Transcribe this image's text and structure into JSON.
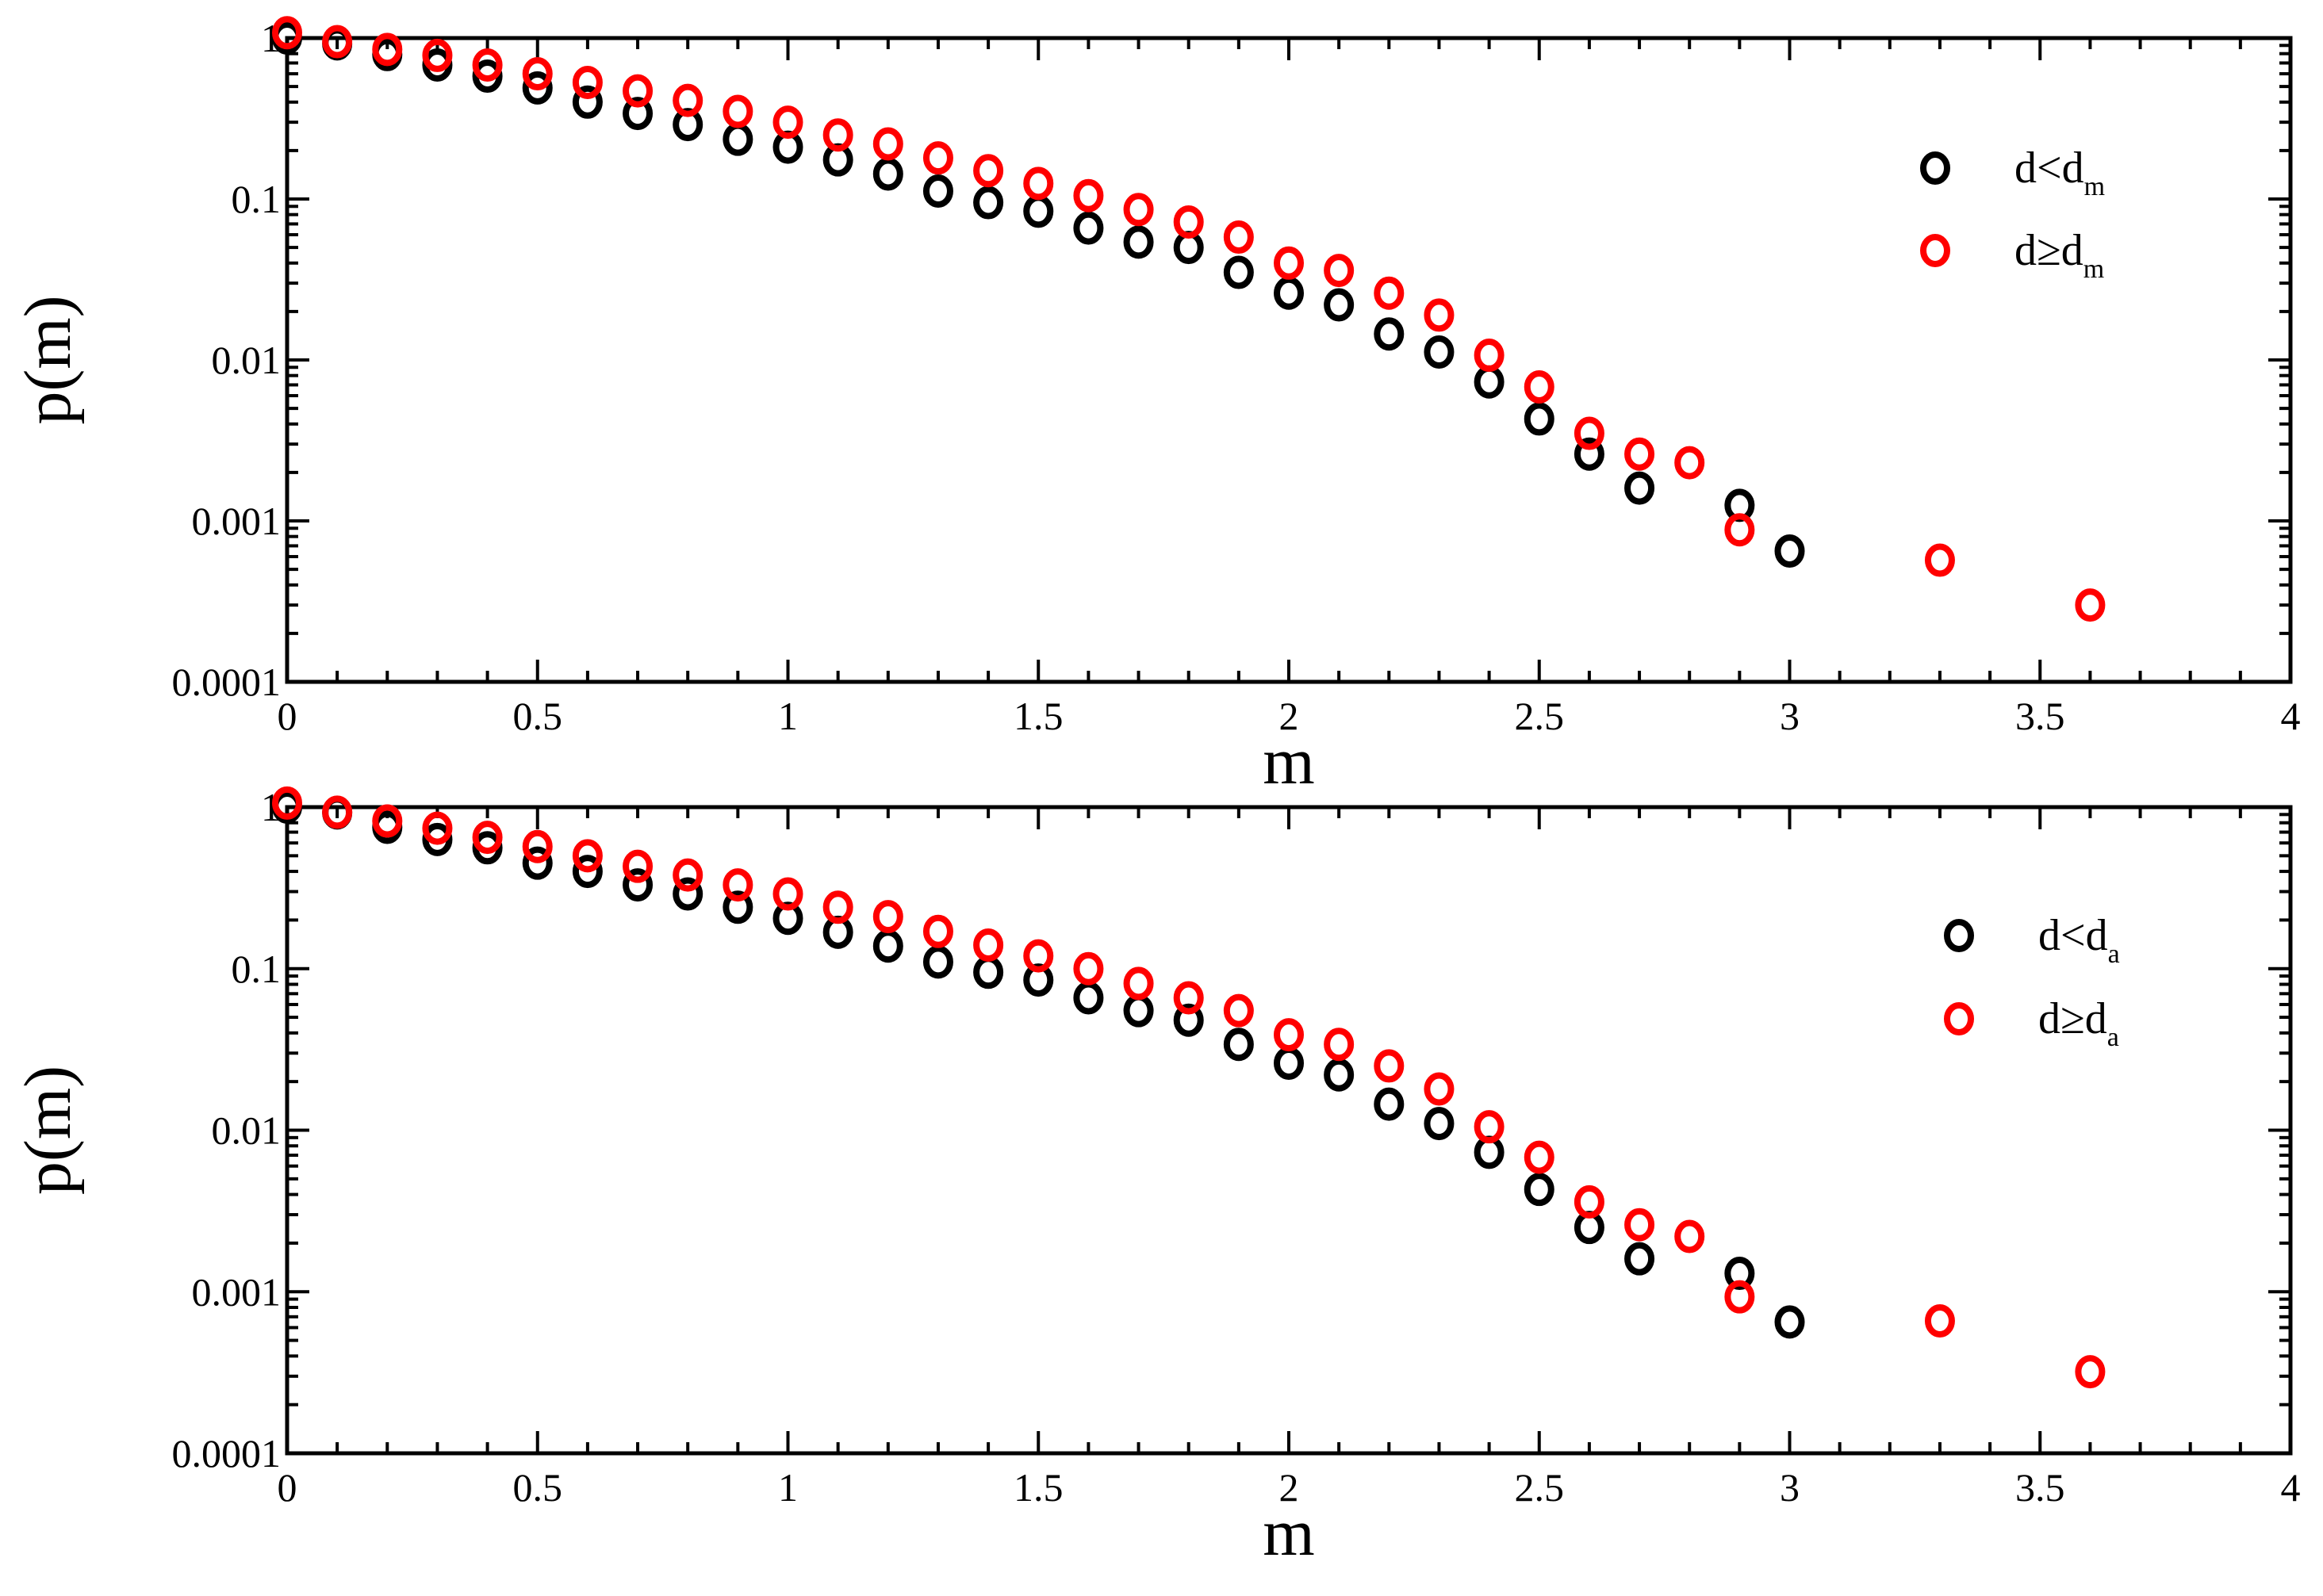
{
  "chart_data": [
    {
      "type": "scatter",
      "xlabel": "m",
      "ylabel": "p(m)",
      "xlim": [
        0,
        4
      ],
      "ylim": [
        0.0001,
        1
      ],
      "yscale": "log",
      "x_ticks": [
        "0",
        "0.5",
        "1",
        "1.5",
        "2",
        "2.5",
        "3",
        "3.5",
        "4"
      ],
      "y_ticks": [
        "0.0001",
        "0.001",
        "0.01",
        "0.1",
        "1"
      ],
      "legend_position": "top-right",
      "series": [
        {
          "name": "d<d_m",
          "legend_main": "d<d",
          "legend_sub": "m",
          "color": "#000000",
          "points": [
            [
              0.0,
              1.0
            ],
            [
              0.1,
              0.92
            ],
            [
              0.2,
              0.79
            ],
            [
              0.3,
              0.68
            ],
            [
              0.4,
              0.58
            ],
            [
              0.5,
              0.49
            ],
            [
              0.6,
              0.4
            ],
            [
              0.7,
              0.34
            ],
            [
              0.8,
              0.29
            ],
            [
              0.9,
              0.235
            ],
            [
              1.0,
              0.21
            ],
            [
              1.1,
              0.175
            ],
            [
              1.2,
              0.143
            ],
            [
              1.3,
              0.112
            ],
            [
              1.4,
              0.095
            ],
            [
              1.5,
              0.084
            ],
            [
              1.6,
              0.066
            ],
            [
              1.7,
              0.054
            ],
            [
              1.8,
              0.05
            ],
            [
              1.9,
              0.035
            ],
            [
              2.0,
              0.026
            ],
            [
              2.1,
              0.022
            ],
            [
              2.2,
              0.0145
            ],
            [
              2.3,
              0.0112
            ],
            [
              2.4,
              0.0073
            ],
            [
              2.5,
              0.0043
            ],
            [
              2.6,
              0.0026
            ],
            [
              2.7,
              0.0016
            ],
            [
              2.9,
              0.00125
            ],
            [
              3.0,
              0.00065
            ]
          ]
        },
        {
          "name": "d≥d_m",
          "legend_main": "d≥d",
          "legend_sub": "m",
          "color": "#ff0000",
          "points": [
            [
              0.0,
              1.08
            ],
            [
              0.1,
              0.95
            ],
            [
              0.2,
              0.85
            ],
            [
              0.3,
              0.78
            ],
            [
              0.4,
              0.68
            ],
            [
              0.5,
              0.6
            ],
            [
              0.6,
              0.53
            ],
            [
              0.7,
              0.47
            ],
            [
              0.8,
              0.41
            ],
            [
              0.9,
              0.35
            ],
            [
              1.0,
              0.3
            ],
            [
              1.1,
              0.25
            ],
            [
              1.2,
              0.22
            ],
            [
              1.3,
              0.18
            ],
            [
              1.4,
              0.15
            ],
            [
              1.5,
              0.125
            ],
            [
              1.6,
              0.105
            ],
            [
              1.7,
              0.086
            ],
            [
              1.8,
              0.072
            ],
            [
              1.9,
              0.058
            ],
            [
              2.0,
              0.04
            ],
            [
              2.1,
              0.036
            ],
            [
              2.2,
              0.026
            ],
            [
              2.3,
              0.019
            ],
            [
              2.4,
              0.0107
            ],
            [
              2.5,
              0.0068
            ],
            [
              2.6,
              0.0035
            ],
            [
              2.7,
              0.0026
            ],
            [
              2.8,
              0.0023
            ],
            [
              2.9,
              0.00088
            ],
            [
              3.3,
              0.00057
            ],
            [
              3.6,
              0.0003
            ]
          ]
        }
      ]
    },
    {
      "type": "scatter",
      "xlabel": "m",
      "ylabel": "p(m)",
      "xlim": [
        0,
        4
      ],
      "ylim": [
        0.0001,
        1
      ],
      "yscale": "log",
      "x_ticks": [
        "0",
        "0.5",
        "1",
        "1.5",
        "2",
        "2.5",
        "3",
        "3.5",
        "4"
      ],
      "y_ticks": [
        "0.0001",
        "0.001",
        "0.01",
        "0.1",
        "1"
      ],
      "legend_position": "top-right",
      "series": [
        {
          "name": "d<d_a",
          "legend_main": "d<d",
          "legend_sub": "a",
          "color": "#000000",
          "points": [
            [
              0.0,
              1.0
            ],
            [
              0.1,
              0.92
            ],
            [
              0.2,
              0.75
            ],
            [
              0.3,
              0.63
            ],
            [
              0.4,
              0.56
            ],
            [
              0.5,
              0.45
            ],
            [
              0.6,
              0.4
            ],
            [
              0.7,
              0.33
            ],
            [
              0.8,
              0.29
            ],
            [
              0.9,
              0.24
            ],
            [
              1.0,
              0.205
            ],
            [
              1.1,
              0.168
            ],
            [
              1.2,
              0.138
            ],
            [
              1.3,
              0.11
            ],
            [
              1.4,
              0.095
            ],
            [
              1.5,
              0.085
            ],
            [
              1.6,
              0.066
            ],
            [
              1.7,
              0.055
            ],
            [
              1.8,
              0.048
            ],
            [
              1.9,
              0.034
            ],
            [
              2.0,
              0.026
            ],
            [
              2.1,
              0.022
            ],
            [
              2.2,
              0.0145
            ],
            [
              2.3,
              0.011
            ],
            [
              2.4,
              0.0073
            ],
            [
              2.5,
              0.0043
            ],
            [
              2.6,
              0.0025
            ],
            [
              2.7,
              0.0016
            ],
            [
              2.9,
              0.0013
            ],
            [
              3.0,
              0.00065
            ]
          ]
        },
        {
          "name": "d≥d_a",
          "legend_main": "d≥d",
          "legend_sub": "a",
          "color": "#ff0000",
          "points": [
            [
              0.0,
              1.06
            ],
            [
              0.1,
              0.93
            ],
            [
              0.2,
              0.82
            ],
            [
              0.3,
              0.74
            ],
            [
              0.4,
              0.65
            ],
            [
              0.5,
              0.57
            ],
            [
              0.6,
              0.5
            ],
            [
              0.7,
              0.43
            ],
            [
              0.8,
              0.38
            ],
            [
              0.9,
              0.33
            ],
            [
              1.0,
              0.29
            ],
            [
              1.1,
              0.24
            ],
            [
              1.2,
              0.21
            ],
            [
              1.3,
              0.17
            ],
            [
              1.4,
              0.14
            ],
            [
              1.5,
              0.12
            ],
            [
              1.6,
              0.1
            ],
            [
              1.7,
              0.081
            ],
            [
              1.8,
              0.066
            ],
            [
              1.9,
              0.055
            ],
            [
              2.0,
              0.039
            ],
            [
              2.1,
              0.034
            ],
            [
              2.2,
              0.025
            ],
            [
              2.3,
              0.018
            ],
            [
              2.4,
              0.0105
            ],
            [
              2.5,
              0.0068
            ],
            [
              2.6,
              0.0036
            ],
            [
              2.7,
              0.0026
            ],
            [
              2.8,
              0.0022
            ],
            [
              2.9,
              0.00093
            ],
            [
              3.3,
              0.00066
            ],
            [
              3.6,
              0.00032
            ]
          ]
        }
      ]
    }
  ]
}
